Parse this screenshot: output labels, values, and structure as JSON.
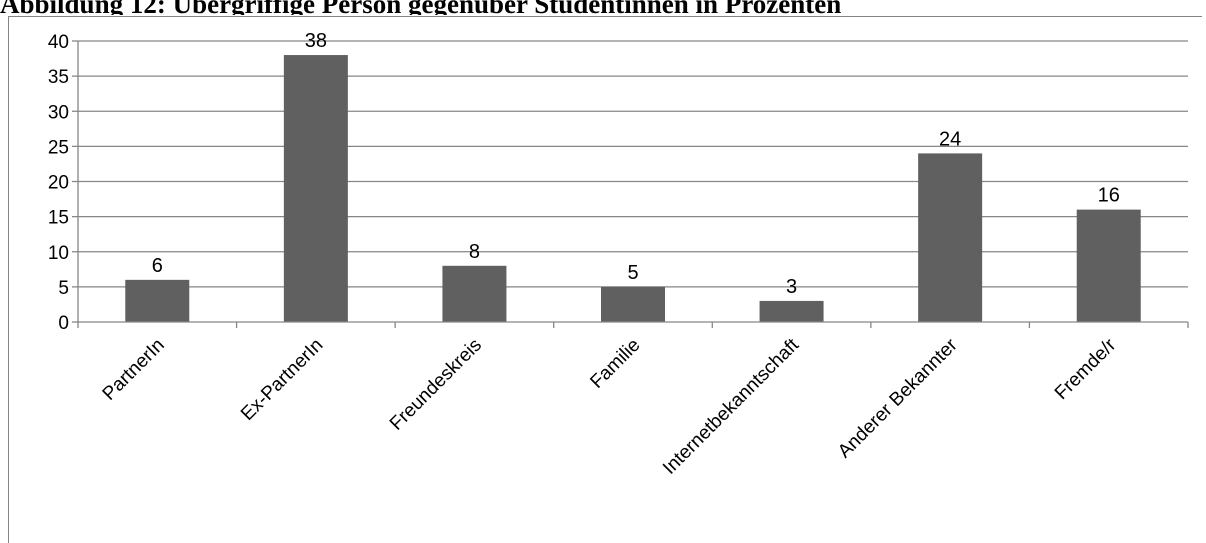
{
  "title": "Abbildung 12: Übergriffige Person gegenüber Studentinnen in Prozenten",
  "chart_data": {
    "type": "bar",
    "categories": [
      "PartnerIn",
      "Ex-PartnerIn",
      "Freundeskreis",
      "Familie",
      "Internetbekanntschaft",
      "Anderer Bekannter",
      "Fremde/r"
    ],
    "values": [
      6,
      38,
      8,
      5,
      3,
      24,
      16
    ],
    "ylim": [
      0,
      40
    ],
    "yticks": [
      0,
      5,
      10,
      15,
      20,
      25,
      30,
      35,
      40
    ],
    "grid": true,
    "bar_color": "#606060",
    "grid_color": "#868686",
    "data_labels": true
  }
}
